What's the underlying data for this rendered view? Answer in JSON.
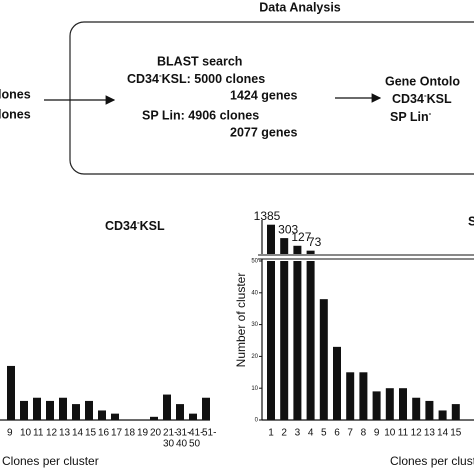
{
  "diagram": {
    "title": "Data Analysis",
    "left_lines": [
      "lones",
      "lones"
    ],
    "blast": {
      "heading": "BLAST search",
      "line1": [
        "CD34",
        "-",
        "KSL: 5000 clones"
      ],
      "line2": "1424 genes",
      "line3": "SP Lin: 4906 clones",
      "line4": "2077 genes"
    },
    "right": {
      "heading": "Gene Ontolo",
      "line1": [
        "CD34",
        "-",
        "KSL"
      ],
      "line2": [
        "SP Lin",
        "-"
      ]
    }
  },
  "chart_data": [
    {
      "type": "bar",
      "title": [
        "CD34",
        "-",
        "KSL"
      ],
      "x_label": "Clones per cluster",
      "categories": [
        "9",
        "10",
        "11",
        "12",
        "13",
        "14",
        "15",
        "16",
        "17",
        "18",
        "19",
        "20",
        "21-",
        "31-",
        "41-",
        "51-"
      ],
      "subcategories": [
        null,
        null,
        null,
        null,
        null,
        null,
        null,
        null,
        null,
        null,
        null,
        null,
        "30",
        "40",
        "50",
        null
      ],
      "values": [
        17,
        6,
        7,
        6,
        7,
        5,
        6,
        3,
        2,
        0,
        0,
        1,
        8,
        5,
        2,
        7
      ],
      "ylim": [
        0,
        50
      ],
      "color": "#111111"
    },
    {
      "type": "broken_bar",
      "title": "S",
      "x_label": "Clones per cluster",
      "y_label": "Number of cluster",
      "categories": [
        "1",
        "2",
        "3",
        "4",
        "5",
        "6",
        "7",
        "8",
        "9",
        "10",
        "11",
        "12",
        "13",
        "14",
        "15"
      ],
      "values": [
        1385,
        303,
        127,
        73,
        38,
        23,
        15,
        15,
        9,
        10,
        10,
        7,
        6,
        3,
        5
      ],
      "ylim": [
        0,
        50
      ],
      "yticks": [
        0,
        10,
        20,
        30,
        40,
        50
      ],
      "y2lim": [
        50,
        1500
      ],
      "y2log": true,
      "color": "#111111"
    }
  ]
}
